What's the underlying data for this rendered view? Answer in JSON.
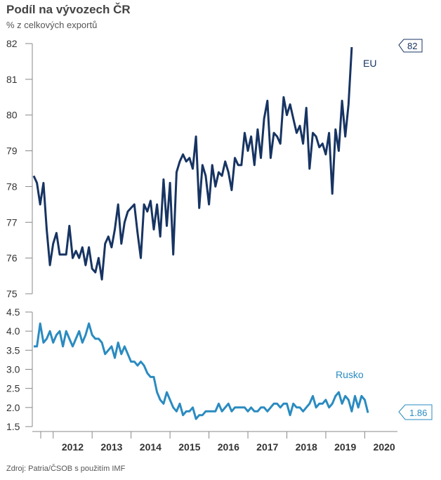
{
  "title": "Podíl na vývozech ČR",
  "subtitle": "% z celkových exportů",
  "source": "Zdroj: Patria/ČSOB s použitím IMF",
  "colors": {
    "eu": "#173462",
    "rusko": "#2a8bc0"
  },
  "chart_data": [
    {
      "type": "line",
      "name": "eu-panel",
      "series": [
        {
          "name": "EU",
          "x_start": 2011.5,
          "x_step": 0.0833333,
          "values": [
            78.3,
            78.1,
            77.5,
            78.1,
            76.8,
            75.8,
            76.4,
            76.7,
            76.1,
            76.1,
            76.1,
            76.9,
            76.0,
            76.2,
            76.0,
            76.3,
            75.8,
            76.3,
            75.7,
            75.6,
            76.0,
            75.4,
            76.4,
            76.6,
            76.3,
            76.8,
            77.5,
            76.4,
            77.0,
            77.3,
            77.4,
            77.5,
            76.7,
            76.0,
            77.5,
            77.3,
            77.6,
            76.8,
            77.5,
            76.6,
            78.2,
            76.9,
            78.1,
            76.1,
            78.4,
            78.7,
            78.9,
            78.7,
            78.8,
            78.5,
            79.4,
            77.4,
            78.6,
            78.3,
            77.5,
            78.6,
            78.0,
            78.4,
            78.3,
            78.7,
            78.4,
            77.9,
            78.8,
            78.6,
            78.6,
            79.5,
            79.0,
            79.4,
            78.6,
            79.6,
            78.8,
            79.9,
            80.4,
            78.8,
            79.5,
            79.4,
            79.2,
            80.5,
            80.0,
            80.3,
            79.9,
            79.5,
            79.7,
            79.2,
            80.2,
            78.5,
            79.5,
            79.4,
            79.1,
            79.2,
            78.9,
            79.5,
            77.8,
            79.6,
            79.0,
            80.4,
            79.4,
            80.3,
            81.9
          ]
        }
      ],
      "ylim": [
        75,
        82
      ],
      "yticks": [
        75,
        76,
        77,
        78,
        79,
        80,
        81,
        82
      ],
      "series_label": "EU",
      "callout": "82"
    },
    {
      "type": "line",
      "name": "rusko-panel",
      "series": [
        {
          "name": "Rusko",
          "x_start": 2011.5,
          "x_step": 0.0833333,
          "values": [
            3.6,
            3.6,
            4.2,
            3.7,
            3.8,
            4.0,
            3.7,
            3.9,
            4.0,
            3.6,
            4.0,
            3.8,
            3.6,
            3.8,
            4.0,
            3.7,
            3.9,
            4.2,
            3.9,
            3.8,
            3.8,
            3.7,
            3.4,
            3.5,
            3.6,
            3.3,
            3.7,
            3.4,
            3.6,
            3.4,
            3.2,
            3.2,
            3.1,
            3.2,
            3.1,
            2.9,
            2.8,
            2.8,
            2.4,
            2.2,
            2.1,
            2.4,
            2.2,
            2.0,
            1.9,
            2.1,
            1.8,
            1.9,
            1.9,
            2.0,
            1.7,
            1.8,
            1.8,
            1.9,
            1.9,
            1.9,
            1.9,
            2.1,
            1.9,
            2.0,
            2.1,
            1.9,
            2.0,
            2.0,
            2.0,
            2.0,
            1.9,
            2.0,
            1.9,
            1.9,
            2.0,
            2.0,
            1.9,
            2.0,
            2.1,
            2.1,
            2.0,
            2.1,
            2.1,
            1.8,
            2.1,
            2.0,
            2.0,
            1.9,
            2.0,
            2.1,
            2.3,
            2.0,
            2.1,
            2.1,
            2.2,
            2.0,
            2.1,
            2.3,
            2.4,
            2.1,
            2.3,
            2.2,
            1.9,
            2.3,
            2.0,
            2.3,
            2.2,
            1.86
          ],
          "display_values": [
            3.6,
            3.6,
            4.2,
            3.7,
            3.8,
            4.0,
            3.7,
            3.9,
            4.0,
            3.6,
            4.0,
            3.8,
            3.6,
            3.8,
            4.0,
            3.7,
            3.9,
            4.2,
            3.9,
            3.8,
            3.8,
            3.7,
            3.4,
            3.5,
            3.6,
            3.3,
            3.7,
            3.4,
            3.6,
            3.4,
            3.2,
            3.2,
            3.1,
            3.2,
            3.1,
            2.9,
            2.8,
            2.8,
            2.4,
            2.2,
            2.1,
            2.4,
            2.2,
            2.0,
            1.9,
            2.1,
            1.8,
            1.9,
            1.9,
            2.0,
            1.7,
            1.8,
            1.8,
            1.9,
            1.9,
            1.9,
            1.9,
            2.1,
            1.9,
            2.0,
            2.1,
            1.9,
            2.0,
            2.0,
            2.0,
            2.0,
            1.9,
            2.0,
            1.9,
            1.9,
            2.0,
            2.0,
            1.9,
            2.0,
            2.1,
            2.1,
            2.0,
            2.1,
            2.1,
            1.8,
            2.1,
            2.0,
            2.0,
            1.9,
            2.0,
            2.1,
            2.3,
            2.0,
            2.1,
            2.1,
            2.2,
            2.0,
            2.1,
            2.3,
            2.4,
            2.1,
            2.3,
            2.2,
            1.9,
            2.3,
            2.0,
            2.3,
            2.2,
            1.86
          ]
        }
      ],
      "ylim": [
        1.5,
        4.5
      ],
      "yticks": [
        "1.5",
        "2.0",
        "2.5",
        "3.0",
        "3.5",
        "4.0",
        "4.5"
      ],
      "series_label": "Rusko",
      "callout": "1.86"
    }
  ],
  "x_axis": {
    "xlim": [
      2011.5,
      2020.75
    ],
    "ticks": [
      "2012",
      "2013",
      "2014",
      "2015",
      "2016",
      "2017",
      "2018",
      "2019",
      "2020"
    ]
  }
}
